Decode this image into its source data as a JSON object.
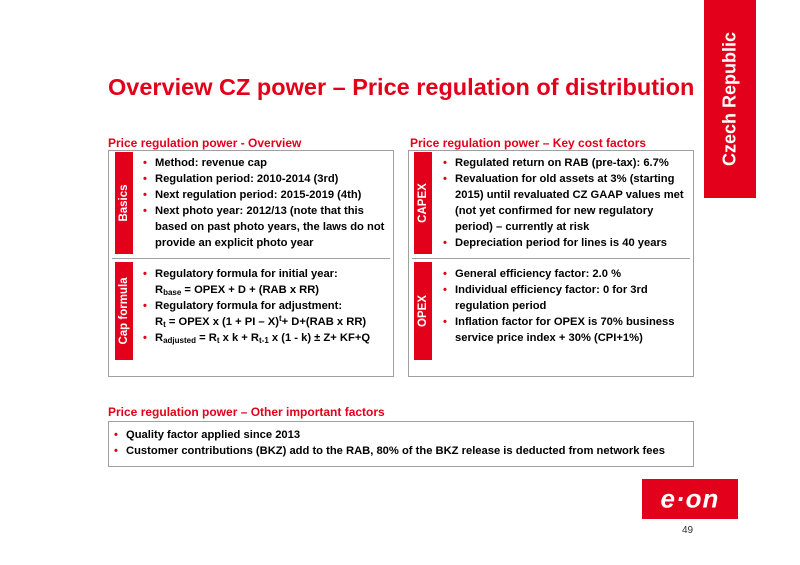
{
  "side_tab": "Czech Republic",
  "title": "Overview CZ power – Price regulation of distribution",
  "left": {
    "heading": "Price regulation power - Overview",
    "sections": [
      {
        "label": "Basics",
        "bullets": [
          "Method: revenue cap",
          "Regulation period: 2010-2014 (3rd)",
          "Next regulation period: 2015-2019 (4th)",
          "Next photo year: 2012/13 (note that this based on past photo years, the laws do not provide an explicit photo year"
        ]
      },
      {
        "label": "Cap formula",
        "bullets": {
          "b1": "Regulatory formula for initial year:",
          "f1": {
            "r": "R",
            "sub": "base",
            "rest": " = OPEX + D + (RAB x RR)"
          },
          "b2": "Regulatory formula for adjustment:",
          "f2": {
            "r": "R",
            "sub": "t",
            "rest": " = OPEX x (1 + PI  – X)",
            "sup": "t",
            "rest2": "+ D+(RAB x RR)"
          },
          "f3": {
            "r": "R",
            "sub": "adjusted",
            "mid": " = R",
            "sub2": "t",
            "mid2": " x k + R",
            "sub3": "t-1",
            "rest": " x (1 - k) ± Z+ KF+Q"
          }
        }
      }
    ]
  },
  "right": {
    "heading": "Price regulation power – Key cost factors",
    "sections": [
      {
        "label": "CAPEX",
        "bullets": [
          "Regulated return on RAB (pre-tax): 6.7%",
          "Revaluation for old assets at 3% (starting 2015) until revaluated CZ GAAP values met (not yet confirmed for new regulatory period) – currently at risk",
          "Depreciation period for lines is 40 years"
        ]
      },
      {
        "label": "OPEX",
        "bullets": [
          "General efficiency factor:  2.0 %",
          "Individual efficiency factor: 0 for 3rd regulation period",
          "Inflation factor for OPEX is 70% business service price index + 30% (CPI+1%)"
        ]
      }
    ]
  },
  "bottom": {
    "heading": "Price regulation power – Other important factors",
    "bullets": [
      "Quality factor applied since 2013",
      "Customer contributions (BKZ) add to the RAB, 80% of the BKZ release is deducted from network fees"
    ]
  },
  "logo_text": "e·on",
  "page_number": "49",
  "colors": {
    "brand_red": "#e2001a",
    "border_gray": "#a0a0a0"
  }
}
